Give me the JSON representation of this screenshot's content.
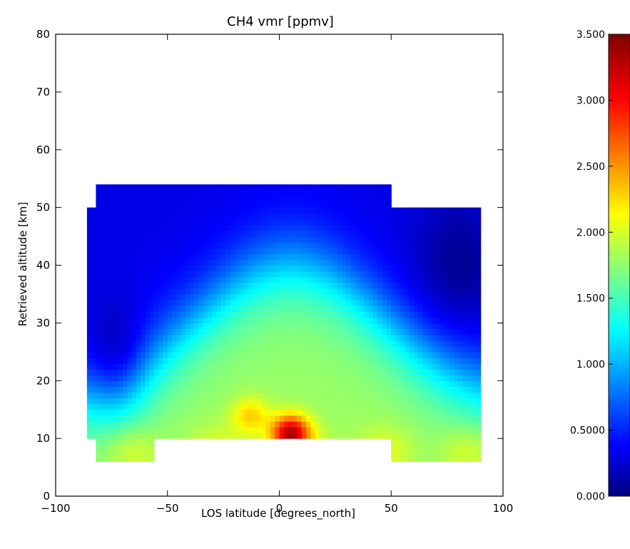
{
  "chart_data": {
    "type": "heatmap",
    "title": "CH4 vmr [ppmv]",
    "xlabel": "LOS latitude [degrees_north]",
    "ylabel": "Retrieved altitude [km]",
    "xlim": [
      -100,
      100
    ],
    "ylim": [
      0,
      80
    ],
    "xticks": [
      -100,
      -50,
      0,
      50,
      100
    ],
    "xtick_labels": [
      "−100",
      "−50",
      "0",
      "50",
      "100"
    ],
    "yticks": [
      0,
      10,
      20,
      30,
      40,
      50,
      60,
      70,
      80
    ],
    "ytick_labels": [
      "0",
      "10",
      "20",
      "30",
      "40",
      "50",
      "60",
      "70",
      "80"
    ],
    "colorbar": {
      "colormap": "jet",
      "range": [
        0.0,
        3.5
      ],
      "ticks": [
        0.0,
        0.5,
        1.0,
        1.5,
        2.0,
        2.5,
        3.0,
        3.5
      ],
      "tick_labels": [
        "0.000",
        "0.5000",
        "1.000",
        "1.500",
        "2.000",
        "2.500",
        "3.000",
        "3.500"
      ]
    },
    "data_extent": [
      {
        "lat_min": -86,
        "lat_max": -82,
        "alt_min": 10,
        "alt_max": 50
      },
      {
        "lat_min": -82,
        "lat_max": -55,
        "alt_min": 6,
        "alt_max": 54
      },
      {
        "lat_min": -55,
        "lat_max": 50,
        "alt_min": 10,
        "alt_max": 54
      },
      {
        "lat_min": 50,
        "lat_max": 90,
        "alt_min": 6,
        "alt_max": 50
      }
    ],
    "latitudes": [
      -85,
      -75,
      -65,
      -55,
      -45,
      -35,
      -25,
      -15,
      -5,
      5,
      15,
      25,
      35,
      45,
      55,
      65,
      75,
      85
    ],
    "altitudes": [
      6,
      8,
      10,
      12,
      14,
      16,
      18,
      20,
      22,
      24,
      26,
      28,
      30,
      32,
      34,
      36,
      38,
      40,
      42,
      44,
      46,
      48,
      50,
      52,
      54
    ],
    "feature_notes": [
      {
        "lat": 5,
        "alt": 11,
        "value": 3.3
      },
      {
        "lat": -13,
        "alt": 14,
        "value": 2.4
      }
    ]
  }
}
